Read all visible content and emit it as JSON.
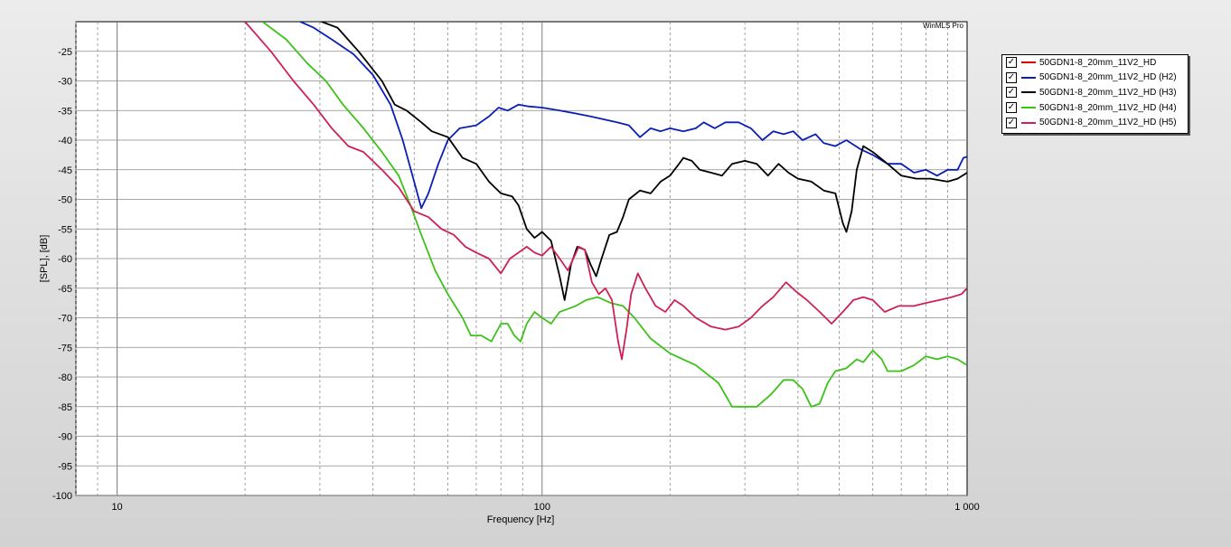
{
  "chart_data": {
    "type": "line",
    "watermark": "WinMLS Pro",
    "xlabel": "Frequency [Hz]",
    "ylabel": "[SPL], [dB]",
    "xscale": "log",
    "xlim": [
      8,
      1000
    ],
    "ylim": [
      -100,
      -20
    ],
    "x_tick_labels": [
      {
        "value": 10,
        "label": "10"
      },
      {
        "value": 100,
        "label": "100"
      },
      {
        "value": 1000,
        "label": "1 000"
      }
    ],
    "y_ticks": [
      -25,
      -30,
      -35,
      -40,
      -45,
      -50,
      -55,
      -60,
      -65,
      -70,
      -75,
      -80,
      -85,
      -90,
      -95,
      -100
    ],
    "grid": true,
    "legend_position": "right",
    "series": [
      {
        "name": "50GDN1-8_20mm_11V2_HD",
        "color": "#e00000",
        "checked": true,
        "points": []
      },
      {
        "name": "50GDN1-8_20mm_11V2_HD (H2)",
        "color": "#0a1fb4",
        "checked": true,
        "points": [
          [
            26,
            -19.5
          ],
          [
            29,
            -21
          ],
          [
            32,
            -23
          ],
          [
            36,
            -25.5
          ],
          [
            40,
            -29
          ],
          [
            44,
            -34
          ],
          [
            47,
            -40
          ],
          [
            50,
            -47
          ],
          [
            52,
            -51.5
          ],
          [
            54,
            -49
          ],
          [
            57,
            -44
          ],
          [
            60,
            -40
          ],
          [
            64,
            -38
          ],
          [
            70,
            -37.5
          ],
          [
            75,
            -36
          ],
          [
            79,
            -34.5
          ],
          [
            83,
            -35
          ],
          [
            88,
            -34
          ],
          [
            93,
            -34.3
          ],
          [
            100,
            -34.5
          ],
          [
            110,
            -35
          ],
          [
            120,
            -35.5
          ],
          [
            130,
            -36
          ],
          [
            140,
            -36.5
          ],
          [
            150,
            -37
          ],
          [
            160,
            -37.5
          ],
          [
            170,
            -39.5
          ],
          [
            180,
            -38
          ],
          [
            190,
            -38.5
          ],
          [
            200,
            -38
          ],
          [
            215,
            -38.5
          ],
          [
            230,
            -38
          ],
          [
            240,
            -37
          ],
          [
            255,
            -38
          ],
          [
            270,
            -37
          ],
          [
            290,
            -37
          ],
          [
            310,
            -38
          ],
          [
            330,
            -40
          ],
          [
            350,
            -38.5
          ],
          [
            370,
            -39
          ],
          [
            390,
            -38.5
          ],
          [
            410,
            -40
          ],
          [
            440,
            -39
          ],
          [
            460,
            -40.5
          ],
          [
            490,
            -41
          ],
          [
            520,
            -40
          ],
          [
            560,
            -41.5
          ],
          [
            600,
            -42.5
          ],
          [
            650,
            -44
          ],
          [
            700,
            -44
          ],
          [
            750,
            -45.5
          ],
          [
            800,
            -45
          ],
          [
            850,
            -46
          ],
          [
            900,
            -45
          ],
          [
            950,
            -45
          ],
          [
            980,
            -43
          ],
          [
            1000,
            -42.8
          ]
        ]
      },
      {
        "name": "50GDN1-8_20mm_11V2_HD (H3)",
        "color": "#000000",
        "checked": true,
        "points": [
          [
            29,
            -19.5
          ],
          [
            33,
            -21
          ],
          [
            37,
            -25
          ],
          [
            42,
            -30
          ],
          [
            45,
            -34
          ],
          [
            48,
            -35
          ],
          [
            52,
            -37
          ],
          [
            55,
            -38.5
          ],
          [
            60,
            -39.5
          ],
          [
            65,
            -43
          ],
          [
            70,
            -44
          ],
          [
            75,
            -47
          ],
          [
            80,
            -49
          ],
          [
            85,
            -49.5
          ],
          [
            88,
            -51
          ],
          [
            92,
            -55
          ],
          [
            96,
            -56.5
          ],
          [
            100,
            -55.5
          ],
          [
            105,
            -57
          ],
          [
            110,
            -63
          ],
          [
            113,
            -67
          ],
          [
            117,
            -61
          ],
          [
            121,
            -58
          ],
          [
            126,
            -58.5
          ],
          [
            130,
            -61
          ],
          [
            134,
            -63
          ],
          [
            138,
            -60
          ],
          [
            144,
            -56
          ],
          [
            150,
            -55.5
          ],
          [
            155,
            -53
          ],
          [
            160,
            -50
          ],
          [
            170,
            -48.5
          ],
          [
            180,
            -49
          ],
          [
            190,
            -47
          ],
          [
            200,
            -46
          ],
          [
            210,
            -44
          ],
          [
            215,
            -43
          ],
          [
            225,
            -43.5
          ],
          [
            235,
            -45
          ],
          [
            250,
            -45.5
          ],
          [
            265,
            -46
          ],
          [
            280,
            -44
          ],
          [
            300,
            -43.5
          ],
          [
            320,
            -44
          ],
          [
            340,
            -46
          ],
          [
            360,
            -44
          ],
          [
            380,
            -45.5
          ],
          [
            400,
            -46.5
          ],
          [
            430,
            -47
          ],
          [
            460,
            -48.5
          ],
          [
            490,
            -49
          ],
          [
            510,
            -54
          ],
          [
            520,
            -55.5
          ],
          [
            535,
            -52
          ],
          [
            550,
            -45
          ],
          [
            570,
            -41
          ],
          [
            600,
            -42
          ],
          [
            650,
            -44
          ],
          [
            700,
            -46
          ],
          [
            760,
            -46.5
          ],
          [
            820,
            -46.5
          ],
          [
            900,
            -47
          ],
          [
            950,
            -46.5
          ],
          [
            1000,
            -45.5
          ]
        ]
      },
      {
        "name": "50GDN1-8_20mm_11V2_HD (H4)",
        "color": "#3ec11a",
        "checked": true,
        "points": [
          [
            22,
            -20
          ],
          [
            25,
            -23
          ],
          [
            28,
            -27
          ],
          [
            31,
            -30
          ],
          [
            34,
            -34
          ],
          [
            38,
            -38
          ],
          [
            42,
            -42
          ],
          [
            46,
            -46
          ],
          [
            49,
            -51
          ],
          [
            52,
            -56
          ],
          [
            56,
            -62
          ],
          [
            60,
            -66
          ],
          [
            65,
            -70
          ],
          [
            68,
            -73
          ],
          [
            72,
            -73
          ],
          [
            76,
            -74
          ],
          [
            80,
            -71
          ],
          [
            83,
            -71
          ],
          [
            86,
            -73
          ],
          [
            89,
            -74
          ],
          [
            92,
            -71
          ],
          [
            96,
            -69
          ],
          [
            100,
            -70
          ],
          [
            105,
            -71
          ],
          [
            110,
            -69
          ],
          [
            115,
            -68.5
          ],
          [
            120,
            -68
          ],
          [
            127,
            -67
          ],
          [
            135,
            -66.5
          ],
          [
            145,
            -67.5
          ],
          [
            155,
            -68
          ],
          [
            165,
            -70
          ],
          [
            180,
            -73.5
          ],
          [
            200,
            -76
          ],
          [
            230,
            -78
          ],
          [
            260,
            -81
          ],
          [
            280,
            -85
          ],
          [
            300,
            -85
          ],
          [
            320,
            -85
          ],
          [
            345,
            -83
          ],
          [
            370,
            -80.5
          ],
          [
            390,
            -80.5
          ],
          [
            410,
            -82
          ],
          [
            430,
            -85
          ],
          [
            450,
            -84.5
          ],
          [
            470,
            -81
          ],
          [
            490,
            -79
          ],
          [
            520,
            -78.5
          ],
          [
            550,
            -77
          ],
          [
            570,
            -77.5
          ],
          [
            600,
            -75.5
          ],
          [
            630,
            -77
          ],
          [
            650,
            -79
          ],
          [
            700,
            -79
          ],
          [
            750,
            -78
          ],
          [
            800,
            -76.5
          ],
          [
            850,
            -77
          ],
          [
            900,
            -76.5
          ],
          [
            950,
            -77
          ],
          [
            1000,
            -78
          ]
        ]
      },
      {
        "name": "50GDN1-8_20mm_11V2_HD (H5)",
        "color": "#cc2255",
        "checked": true,
        "points": [
          [
            20,
            -20
          ],
          [
            23,
            -25
          ],
          [
            26,
            -30
          ],
          [
            29,
            -34
          ],
          [
            32,
            -38
          ],
          [
            35,
            -41
          ],
          [
            38,
            -42
          ],
          [
            42,
            -45
          ],
          [
            46,
            -48
          ],
          [
            50,
            -52
          ],
          [
            54,
            -53
          ],
          [
            58,
            -55
          ],
          [
            62,
            -56
          ],
          [
            66,
            -58
          ],
          [
            70,
            -59
          ],
          [
            75,
            -60
          ],
          [
            80,
            -62.5
          ],
          [
            84,
            -60
          ],
          [
            88,
            -59
          ],
          [
            92,
            -58
          ],
          [
            96,
            -59
          ],
          [
            100,
            -59.5
          ],
          [
            105,
            -58
          ],
          [
            110,
            -60
          ],
          [
            115,
            -62
          ],
          [
            122,
            -58
          ],
          [
            126,
            -58.5
          ],
          [
            131,
            -64
          ],
          [
            136,
            -66
          ],
          [
            141,
            -65
          ],
          [
            146,
            -67
          ],
          [
            151,
            -74
          ],
          [
            154,
            -77
          ],
          [
            158,
            -72
          ],
          [
            162,
            -66
          ],
          [
            168,
            -62.5
          ],
          [
            175,
            -65
          ],
          [
            185,
            -68
          ],
          [
            195,
            -69
          ],
          [
            205,
            -67
          ],
          [
            215,
            -68
          ],
          [
            230,
            -70
          ],
          [
            250,
            -71.5
          ],
          [
            270,
            -72
          ],
          [
            290,
            -71.5
          ],
          [
            310,
            -70
          ],
          [
            330,
            -68
          ],
          [
            350,
            -66.5
          ],
          [
            375,
            -64
          ],
          [
            395,
            -65.5
          ],
          [
            420,
            -67
          ],
          [
            450,
            -69
          ],
          [
            480,
            -71
          ],
          [
            510,
            -69
          ],
          [
            540,
            -67
          ],
          [
            570,
            -66.5
          ],
          [
            600,
            -67
          ],
          [
            640,
            -69
          ],
          [
            690,
            -68
          ],
          [
            750,
            -68
          ],
          [
            800,
            -67.5
          ],
          [
            860,
            -67
          ],
          [
            920,
            -66.5
          ],
          [
            970,
            -66
          ],
          [
            1000,
            -65
          ]
        ]
      }
    ]
  }
}
